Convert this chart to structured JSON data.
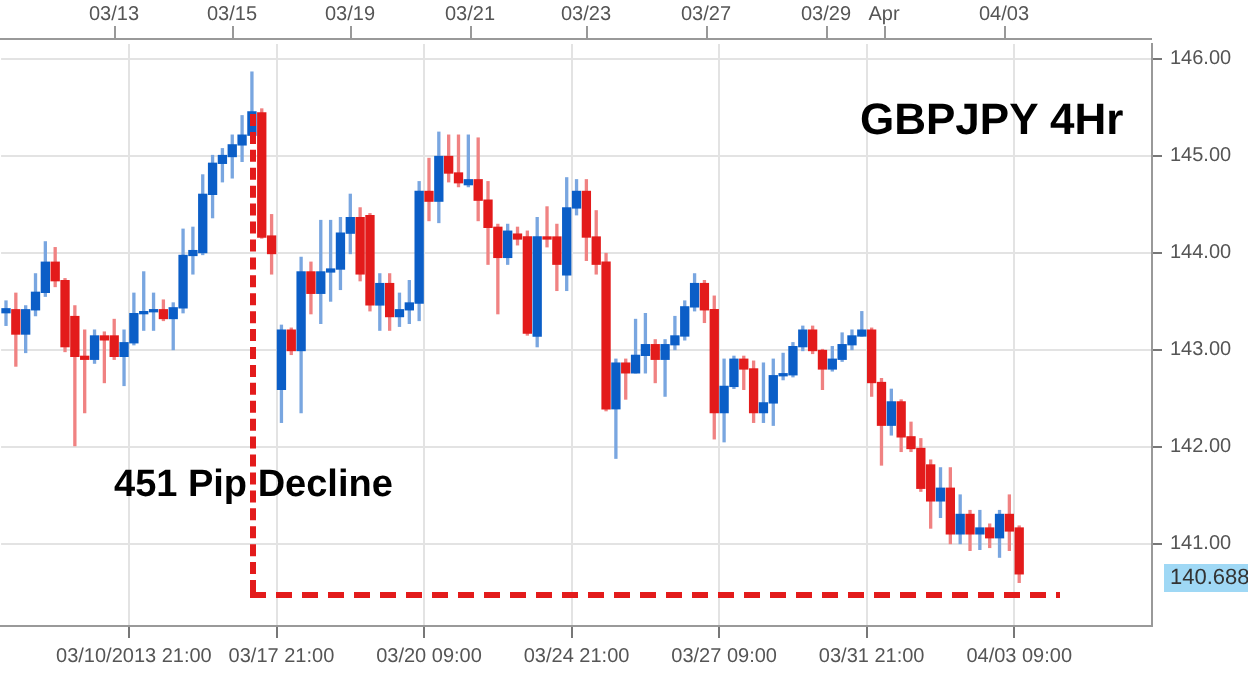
{
  "chart_data": {
    "type": "candlestick",
    "title": "GBPJPY 4Hr",
    "annotations": [
      "451 Pip Decline",
      "140.688",
      "03/13",
      "03/15",
      "03/19",
      "03/21",
      "03/23",
      "03/27",
      "03/29",
      "Apr",
      "04/03"
    ],
    "categories": [
      null,
      null,
      null,
      null,
      null,
      null,
      null,
      null,
      null,
      null,
      null,
      null,
      null,
      "03/10/2013 21:00",
      null,
      null,
      null,
      null,
      null,
      null,
      null,
      null,
      null,
      null,
      null,
      null,
      null,
      null,
      "03/17 21:00",
      null,
      null,
      null,
      null,
      null,
      null,
      null,
      null,
      null,
      null,
      null,
      null,
      null,
      null,
      "03/20 09:00",
      null,
      null,
      null,
      null,
      null,
      null,
      null,
      null,
      null,
      null,
      null,
      null,
      null,
      null,
      "03/24 21:00",
      null,
      null,
      null,
      null,
      null,
      null,
      null,
      null,
      null,
      null,
      null,
      null,
      null,
      null,
      "03/27 09:00",
      null,
      null,
      null,
      null,
      null,
      null,
      null,
      null,
      null,
      null,
      null,
      null,
      null,
      null,
      "03/31 21:00",
      null,
      null,
      null,
      null,
      null,
      null,
      null,
      null,
      null,
      null,
      null,
      null,
      null,
      null,
      "04/03 09:00",
      null,
      null,
      null,
      null,
      null,
      null,
      null,
      null,
      null,
      null,
      null,
      null,
      null
    ],
    "ohlc": [
      [
        143.38,
        143.5,
        143.25,
        143.42
      ],
      [
        143.41,
        143.58,
        142.83,
        143.16
      ],
      [
        143.16,
        143.45,
        142.97,
        143.41
      ],
      [
        143.41,
        143.78,
        143.35,
        143.59
      ],
      [
        143.59,
        144.11,
        143.55,
        143.9
      ],
      [
        143.9,
        144.05,
        143.65,
        143.71
      ],
      [
        143.71,
        143.73,
        142.98,
        143.03
      ],
      [
        143.34,
        143.45,
        142.01,
        142.93
      ],
      [
        142.93,
        143.2,
        142.35,
        142.9
      ],
      [
        142.9,
        143.2,
        142.86,
        143.14
      ],
      [
        143.14,
        143.18,
        142.66,
        143.1
      ],
      [
        143.14,
        143.31,
        142.9,
        142.93
      ],
      [
        142.93,
        143.2,
        142.63,
        143.07
      ],
      [
        143.07,
        143.58,
        143.05,
        143.37
      ],
      [
        143.37,
        143.8,
        143.2,
        143.39
      ],
      [
        143.39,
        143.58,
        143.2,
        143.41
      ],
      [
        143.41,
        143.51,
        143.3,
        143.32
      ],
      [
        143.32,
        143.48,
        143.0,
        143.43
      ],
      [
        143.43,
        144.24,
        143.38,
        143.97
      ],
      [
        143.97,
        144.26,
        143.78,
        144.02
      ],
      [
        144.0,
        144.8,
        143.98,
        144.6
      ],
      [
        144.6,
        145.0,
        144.36,
        144.92
      ],
      [
        144.92,
        145.07,
        144.73,
        145.0
      ],
      [
        144.99,
        145.21,
        144.77,
        145.11
      ],
      [
        145.11,
        145.41,
        144.94,
        145.21
      ],
      [
        145.21,
        145.86,
        145.16,
        145.45
      ],
      [
        145.44,
        145.48,
        144.15,
        144.16
      ],
      [
        144.17,
        144.39,
        143.78,
        143.99
      ],
      [
        142.59,
        143.25,
        142.25,
        143.2
      ],
      [
        143.2,
        143.22,
        142.95,
        142.99
      ],
      [
        142.99,
        143.95,
        142.35,
        143.8
      ],
      [
        143.8,
        143.9,
        143.37,
        143.58
      ],
      [
        143.58,
        144.33,
        143.27,
        143.8
      ],
      [
        143.8,
        144.33,
        143.5,
        143.83
      ],
      [
        143.83,
        144.36,
        143.62,
        144.2
      ],
      [
        144.2,
        144.6,
        143.99,
        144.36
      ],
      [
        144.36,
        144.46,
        143.71,
        143.78
      ],
      [
        144.38,
        144.4,
        143.4,
        143.46
      ],
      [
        143.46,
        143.78,
        143.2,
        143.68
      ],
      [
        143.68,
        143.78,
        143.2,
        143.34
      ],
      [
        143.34,
        143.58,
        143.24,
        143.41
      ],
      [
        143.41,
        143.71,
        143.27,
        143.48
      ],
      [
        143.48,
        144.73,
        143.3,
        144.63
      ],
      [
        144.63,
        144.97,
        144.33,
        144.53
      ],
      [
        144.53,
        145.24,
        144.31,
        144.99
      ],
      [
        144.99,
        145.21,
        144.73,
        144.82
      ],
      [
        144.82,
        145.21,
        144.68,
        144.72
      ],
      [
        144.7,
        145.21,
        144.68,
        144.75
      ],
      [
        144.75,
        145.18,
        144.33,
        144.54
      ],
      [
        144.54,
        144.73,
        143.88,
        144.26
      ],
      [
        144.26,
        144.29,
        143.37,
        143.95
      ],
      [
        143.95,
        144.29,
        143.88,
        144.22
      ],
      [
        144.19,
        144.26,
        144.08,
        144.14
      ],
      [
        144.16,
        144.22,
        143.15,
        143.17
      ],
      [
        143.14,
        144.36,
        143.03,
        144.16
      ],
      [
        144.16,
        144.47,
        144.06,
        144.14
      ],
      [
        144.16,
        144.29,
        143.61,
        143.88
      ],
      [
        143.77,
        144.77,
        143.61,
        144.46
      ],
      [
        144.46,
        144.75,
        144.39,
        144.63
      ],
      [
        144.63,
        144.75,
        143.92,
        144.16
      ],
      [
        144.16,
        144.43,
        143.78,
        143.88
      ],
      [
        143.9,
        143.99,
        142.37,
        142.39
      ],
      [
        142.39,
        142.9,
        141.88,
        142.86
      ],
      [
        142.86,
        142.9,
        142.49,
        142.76
      ],
      [
        142.76,
        143.31,
        142.76,
        142.94
      ],
      [
        142.94,
        143.37,
        142.76,
        143.05
      ],
      [
        143.05,
        143.1,
        142.66,
        142.9
      ],
      [
        142.9,
        143.1,
        142.52,
        143.05
      ],
      [
        143.05,
        143.34,
        143.0,
        143.14
      ],
      [
        143.14,
        143.5,
        143.1,
        143.44
      ],
      [
        143.44,
        143.78,
        143.4,
        143.68
      ],
      [
        143.68,
        143.71,
        143.28,
        143.41
      ],
      [
        143.41,
        143.55,
        142.08,
        142.35
      ],
      [
        142.35,
        142.9,
        142.05,
        142.62
      ],
      [
        142.62,
        142.93,
        142.6,
        142.9
      ],
      [
        142.9,
        142.93,
        142.59,
        142.8
      ],
      [
        142.8,
        142.88,
        142.25,
        142.35
      ],
      [
        142.35,
        142.86,
        142.25,
        142.45
      ],
      [
        142.45,
        142.9,
        142.22,
        142.73
      ],
      [
        142.73,
        142.96,
        142.69,
        142.74
      ],
      [
        142.74,
        143.07,
        142.72,
        143.03
      ],
      [
        143.03,
        143.24,
        142.99,
        143.2
      ],
      [
        143.2,
        143.24,
        142.96,
        142.99
      ],
      [
        142.99,
        143.0,
        142.59,
        142.8
      ],
      [
        142.8,
        143.03,
        142.78,
        142.9
      ],
      [
        142.9,
        143.17,
        142.88,
        143.05
      ],
      [
        143.05,
        143.2,
        143.0,
        143.14
      ],
      [
        143.14,
        143.39,
        143.14,
        143.2
      ],
      [
        143.2,
        143.22,
        142.52,
        142.66
      ],
      [
        142.66,
        142.7,
        141.81,
        142.22
      ],
      [
        142.22,
        142.59,
        142.12,
        142.46
      ],
      [
        142.46,
        142.48,
        141.95,
        142.1
      ],
      [
        142.1,
        142.25,
        141.95,
        141.98
      ],
      [
        141.98,
        142.08,
        141.54,
        141.57
      ],
      [
        141.81,
        141.86,
        141.16,
        141.44
      ],
      [
        141.44,
        141.78,
        141.27,
        141.57
      ],
      [
        141.57,
        141.78,
        141.0,
        141.1
      ],
      [
        141.1,
        141.5,
        141.0,
        141.3
      ],
      [
        141.3,
        141.34,
        140.93,
        141.1
      ],
      [
        141.1,
        141.34,
        140.94,
        141.16
      ],
      [
        141.16,
        141.2,
        140.96,
        141.06
      ],
      [
        141.06,
        141.34,
        140.86,
        141.3
      ],
      [
        141.3,
        141.5,
        140.93,
        141.13
      ],
      [
        141.16,
        141.18,
        140.6,
        140.688
      ],
      null,
      null,
      null,
      null,
      null,
      null,
      null,
      null,
      null,
      null,
      null,
      null,
      null
    ],
    "colors": [
      "#0b5ec7",
      "#e31b1b",
      "#0b5ec7",
      "#0b5ec7",
      "#0b5ec7",
      "#e31b1b",
      "#e31b1b",
      "#e31b1b",
      "#e31b1b",
      "#0b5ec7",
      "#e31b1b",
      "#e31b1b",
      "#0b5ec7",
      "#0b5ec7",
      "#0b5ec7",
      "#0b5ec7",
      "#e31b1b",
      "#0b5ec7",
      "#0b5ec7",
      "#0b5ec7",
      "#0b5ec7",
      "#0b5ec7",
      "#0b5ec7",
      "#0b5ec7",
      "#0b5ec7",
      "#0b5ec7",
      "#e31b1b",
      "#e31b1b",
      "#0b5ec7",
      "#e31b1b",
      "#0b5ec7",
      "#e31b1b",
      "#0b5ec7",
      "#0b5ec7",
      "#0b5ec7",
      "#0b5ec7",
      "#e31b1b",
      "#e31b1b",
      "#0b5ec7",
      "#e31b1b",
      "#0b5ec7",
      "#0b5ec7",
      "#0b5ec7",
      "#e31b1b",
      "#0b5ec7",
      "#e31b1b",
      "#e31b1b",
      "#0b5ec7",
      "#e31b1b",
      "#e31b1b",
      "#e31b1b",
      "#0b5ec7",
      "#e31b1b",
      "#e31b1b",
      "#0b5ec7",
      "#e31b1b",
      "#e31b1b",
      "#0b5ec7",
      "#0b5ec7",
      "#e31b1b",
      "#e31b1b",
      "#e31b1b",
      "#0b5ec7",
      "#e31b1b",
      "#0b5ec7",
      "#0b5ec7",
      "#e31b1b",
      "#0b5ec7",
      "#0b5ec7",
      "#0b5ec7",
      "#0b5ec7",
      "#e31b1b",
      "#e31b1b",
      "#0b5ec7",
      "#0b5ec7",
      "#e31b1b",
      "#e31b1b",
      "#0b5ec7",
      "#0b5ec7",
      "#0b5ec7",
      "#0b5ec7",
      "#0b5ec7",
      "#e31b1b",
      "#e31b1b",
      "#0b5ec7",
      "#0b5ec7",
      "#0b5ec7",
      "#0b5ec7",
      "#e31b1b",
      "#e31b1b",
      "#0b5ec7",
      "#e31b1b",
      "#e31b1b",
      "#e31b1b",
      "#e31b1b",
      "#0b5ec7",
      "#e31b1b",
      "#0b5ec7",
      "#e31b1b",
      "#0b5ec7",
      "#e31b1b",
      "#0b5ec7",
      "#e31b1b",
      "#e31b1b",
      null,
      null,
      null,
      null,
      null,
      null,
      null,
      null,
      null,
      null,
      null,
      null,
      null
    ],
    "ylim": [
      140.15,
      146.15
    ],
    "yticks": [
      {
        "value": 141,
        "label": "141.00"
      },
      {
        "value": 142,
        "label": "142.00"
      },
      {
        "value": 143,
        "label": "143.00"
      },
      {
        "value": 144,
        "label": "144.00"
      },
      {
        "value": 145,
        "label": "145.00"
      },
      {
        "value": 146,
        "label": "146.00"
      }
    ],
    "ref_lines": [
      {
        "axis": "y",
        "value": 140.47,
        "color": "#e31b1b",
        "line_style": "dashed"
      }
    ],
    "grid": true,
    "legend": false
  }
}
